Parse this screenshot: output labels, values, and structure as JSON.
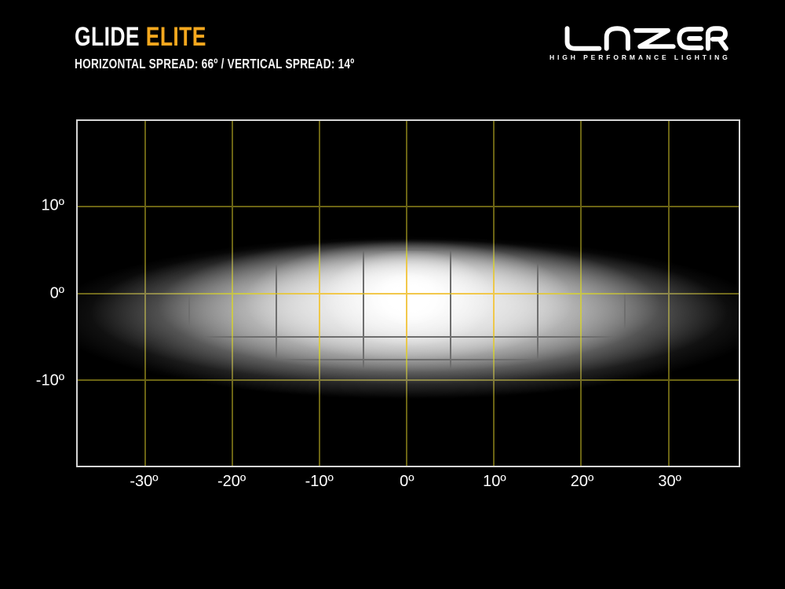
{
  "header": {
    "title_white": "GLIDE",
    "title_accent": "ELITE",
    "subtitle": "HORIZONTAL SPREAD: 66º / VERTICAL SPREAD: 14º",
    "accent_color": "#F5A81E"
  },
  "brand": {
    "name": "LAZER",
    "tagline": "HIGH PERFORMANCE LIGHTING"
  },
  "chart_data": {
    "type": "heatmap",
    "description": "Photometric beam pattern of the Glide Elite lamp: white elliptical hotspot centred at 0° horizontal / 0° vertical, fading through grey to black, spanning roughly ±33° horizontally and ±7° vertically at its bright core.",
    "x_axis": {
      "unit": "degrees horizontal",
      "range_deg": [
        -37.75,
        38.05
      ],
      "ticks": [
        {
          "deg": -30,
          "label": "-30º"
        },
        {
          "deg": -20,
          "label": "-20º"
        },
        {
          "deg": -10,
          "label": "-10º"
        },
        {
          "deg": 0,
          "label": "0º"
        },
        {
          "deg": 10,
          "label": "10º"
        },
        {
          "deg": 20,
          "label": "20º"
        },
        {
          "deg": 30,
          "label": "30º"
        }
      ]
    },
    "y_axis": {
      "unit": "degrees vertical",
      "range_deg": [
        -19.8,
        19.8
      ],
      "ticks": [
        {
          "deg": 10,
          "label": "10º"
        },
        {
          "deg": 0,
          "label": "0º"
        },
        {
          "deg": -10,
          "label": "-10º"
        }
      ]
    },
    "grid_interval_deg": 10,
    "subgrid": {
      "vertical_deg": [
        -35,
        -25,
        -15,
        -5,
        5,
        15,
        25,
        35
      ],
      "horizontal_deg": [
        7.7,
        5,
        -5,
        -7.6
      ]
    },
    "beam": {
      "horizontal_spread_deg": 66,
      "vertical_spread_deg": 14,
      "center_deg": {
        "horizontal": 0,
        "vertical": 0
      },
      "hotspot": "white core at centre fading through grey to black"
    },
    "colors": {
      "grid_on_dark": "#6B6414",
      "grid_on_beam": "#E8A43C",
      "subgrid_on_beam": "#6E6E6E",
      "frame": "#D6D6D6",
      "tick_label": "#FFFFFF",
      "background": "#000000"
    }
  }
}
